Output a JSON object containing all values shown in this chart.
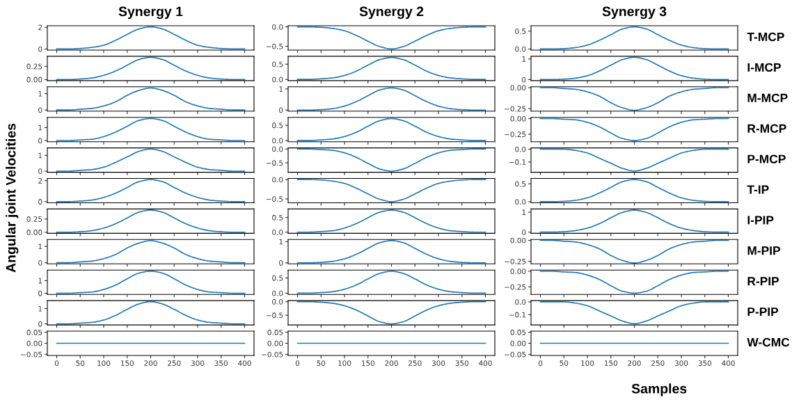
{
  "chart_data": [
    {
      "type": "line",
      "title": "Synergy 1",
      "x": [
        0,
        25,
        50,
        75,
        100,
        125,
        150,
        175,
        200,
        225,
        250,
        275,
        300,
        325,
        350,
        375,
        400
      ],
      "series": [
        {
          "color": "#1f77b4",
          "values": [
            0,
            0,
            0.05,
            0.15,
            0.35,
            0.8,
            1.35,
            1.85,
            2.05,
            1.85,
            1.35,
            0.8,
            0.35,
            0.15,
            0.05,
            0,
            0
          ]
        }
      ],
      "xlim": [
        -20,
        420
      ],
      "xticks": [
        0,
        50,
        100,
        150,
        200,
        250,
        300,
        350,
        400
      ],
      "ylim": [
        -0.1,
        2.15
      ],
      "yticks": [
        0,
        2
      ],
      "tick_labels": "y"
    },
    {
      "type": "line",
      "title": "Synergy 2",
      "x": [
        0,
        25,
        50,
        75,
        100,
        125,
        150,
        175,
        200,
        225,
        250,
        275,
        300,
        325,
        350,
        375,
        400
      ],
      "series": [
        {
          "color": "#1f77b4",
          "values": [
            0,
            0,
            -0.01,
            -0.04,
            -0.1,
            -0.22,
            -0.37,
            -0.51,
            -0.57,
            -0.51,
            -0.37,
            -0.22,
            -0.1,
            -0.04,
            -0.01,
            0,
            0
          ]
        }
      ],
      "xlim": [
        -20,
        420
      ],
      "xticks": [
        0,
        50,
        100,
        150,
        200,
        250,
        300,
        350,
        400
      ],
      "ylim": [
        -0.6,
        0.03
      ],
      "yticks": [
        {
          "value": -0.5,
          "label": "−0.5"
        },
        {
          "value": 0,
          "label": "0.0"
        }
      ],
      "tick_labels": "y"
    },
    {
      "type": "line",
      "title": "Synergy 3",
      "y2label": "T-MCP",
      "x": [
        0,
        25,
        50,
        75,
        100,
        125,
        150,
        175,
        200,
        225,
        250,
        275,
        300,
        325,
        350,
        375,
        400
      ],
      "series": [
        {
          "color": "#1f77b4",
          "values": [
            0,
            0,
            0.01,
            0.04,
            0.11,
            0.24,
            0.4,
            0.56,
            0.62,
            0.56,
            0.4,
            0.24,
            0.11,
            0.04,
            0.01,
            0,
            0
          ]
        }
      ],
      "xlim": [
        -20,
        420
      ],
      "xticks": [
        0,
        50,
        100,
        150,
        200,
        250,
        300,
        350,
        400
      ],
      "ylim": [
        -0.03,
        0.65
      ],
      "yticks": [
        {
          "value": 0,
          "label": "0.0"
        },
        {
          "value": 0.5,
          "label": "0.5"
        }
      ],
      "tick_labels": "y"
    },
    {
      "type": "line",
      "x": [
        0,
        25,
        50,
        75,
        100,
        125,
        150,
        175,
        200,
        225,
        250,
        275,
        300,
        325,
        350,
        375,
        400
      ],
      "series": [
        {
          "color": "#1f77b4",
          "values": [
            0,
            0,
            0.01,
            0.03,
            0.08,
            0.16,
            0.27,
            0.38,
            0.42,
            0.38,
            0.27,
            0.16,
            0.08,
            0.03,
            0.01,
            0,
            0
          ]
        }
      ],
      "xlim": [
        -20,
        420
      ],
      "xticks": [
        0,
        50,
        100,
        150,
        200,
        250,
        300,
        350,
        400
      ],
      "ylim": [
        -0.02,
        0.44
      ],
      "yticks": [
        {
          "value": 0,
          "label": "0.00"
        },
        {
          "value": 0.25,
          "label": "0.25"
        }
      ],
      "tick_labels": "y"
    },
    {
      "type": "line",
      "x": [
        0,
        25,
        50,
        75,
        100,
        125,
        150,
        175,
        200,
        225,
        250,
        275,
        300,
        325,
        350,
        375,
        400
      ],
      "series": [
        {
          "color": "#1f77b4",
          "values": [
            0,
            0,
            0.02,
            0.05,
            0.13,
            0.27,
            0.47,
            0.65,
            0.72,
            0.65,
            0.47,
            0.27,
            0.13,
            0.05,
            0.02,
            0,
            0
          ]
        }
      ],
      "xlim": [
        -20,
        420
      ],
      "xticks": [
        0,
        50,
        100,
        150,
        200,
        250,
        300,
        350,
        400
      ],
      "ylim": [
        -0.04,
        0.76
      ],
      "yticks": [
        {
          "value": 0,
          "label": "0.0"
        },
        {
          "value": 0.5,
          "label": "0.5"
        }
      ],
      "tick_labels": "y"
    },
    {
      "type": "line",
      "y2label": "I-MCP",
      "x": [
        0,
        25,
        50,
        75,
        100,
        125,
        150,
        175,
        200,
        225,
        250,
        275,
        300,
        325,
        350,
        375,
        400
      ],
      "series": [
        {
          "color": "#1f77b4",
          "values": [
            0,
            0,
            0.02,
            0.07,
            0.19,
            0.41,
            0.7,
            0.97,
            1.08,
            0.97,
            0.7,
            0.41,
            0.19,
            0.07,
            0.02,
            0,
            0
          ]
        }
      ],
      "xlim": [
        -20,
        420
      ],
      "xticks": [
        0,
        50,
        100,
        150,
        200,
        250,
        300,
        350,
        400
      ],
      "ylim": [
        -0.05,
        1.13
      ],
      "yticks": [
        0,
        1
      ],
      "tick_labels": "y"
    },
    {
      "type": "line",
      "x": [
        0,
        25,
        50,
        75,
        100,
        125,
        150,
        175,
        200,
        225,
        250,
        275,
        300,
        325,
        350,
        375,
        400
      ],
      "series": [
        {
          "color": "#1f77b4",
          "values": [
            0,
            0,
            0.05,
            0.1,
            0.25,
            0.5,
            0.9,
            1.2,
            1.35,
            1.2,
            0.9,
            0.5,
            0.25,
            0.1,
            0.05,
            0,
            0
          ]
        }
      ],
      "xlim": [
        -20,
        420
      ],
      "xticks": [
        0,
        50,
        100,
        150,
        200,
        250,
        300,
        350,
        400
      ],
      "ylim": [
        -0.07,
        1.42
      ],
      "yticks": [
        0,
        1
      ],
      "tick_labels": "y"
    },
    {
      "type": "line",
      "x": [
        0,
        25,
        50,
        75,
        100,
        125,
        150,
        175,
        200,
        225,
        250,
        275,
        300,
        325,
        350,
        375,
        400
      ],
      "series": [
        {
          "color": "#1f77b4",
          "values": [
            0,
            0,
            0.02,
            0.07,
            0.19,
            0.4,
            0.68,
            0.95,
            1.05,
            0.95,
            0.68,
            0.4,
            0.19,
            0.07,
            0.02,
            0,
            0
          ]
        }
      ],
      "xlim": [
        -20,
        420
      ],
      "xticks": [
        0,
        50,
        100,
        150,
        200,
        250,
        300,
        350,
        400
      ],
      "ylim": [
        -0.05,
        1.1
      ],
      "yticks": [
        0,
        1
      ],
      "tick_labels": "y"
    },
    {
      "type": "line",
      "y2label": "M-MCP",
      "x": [
        0,
        25,
        50,
        75,
        100,
        125,
        150,
        175,
        200,
        225,
        250,
        275,
        300,
        325,
        350,
        375,
        400
      ],
      "series": [
        {
          "color": "#1f77b4",
          "values": [
            0,
            0,
            -0.01,
            -0.02,
            -0.05,
            -0.1,
            -0.18,
            -0.24,
            -0.27,
            -0.24,
            -0.18,
            -0.1,
            -0.05,
            -0.02,
            -0.01,
            0,
            0
          ]
        }
      ],
      "xlim": [
        -20,
        420
      ],
      "xticks": [
        0,
        50,
        100,
        150,
        200,
        250,
        300,
        350,
        400
      ],
      "ylim": [
        -0.28,
        0.01
      ],
      "yticks": [
        {
          "value": -0.25,
          "label": "−0.25"
        },
        {
          "value": 0,
          "label": "0.00"
        }
      ],
      "tick_labels": "y"
    },
    {
      "type": "line",
      "x": [
        0,
        25,
        50,
        75,
        100,
        125,
        150,
        175,
        200,
        225,
        250,
        275,
        300,
        325,
        350,
        375,
        400
      ],
      "series": [
        {
          "color": "#1f77b4",
          "values": [
            0,
            0,
            0.05,
            0.1,
            0.3,
            0.65,
            1.1,
            1.55,
            1.7,
            1.55,
            1.1,
            0.65,
            0.3,
            0.1,
            0.05,
            0,
            0
          ]
        }
      ],
      "xlim": [
        -20,
        420
      ],
      "xticks": [
        0,
        50,
        100,
        150,
        200,
        250,
        300,
        350,
        400
      ],
      "ylim": [
        -0.09,
        1.79
      ],
      "yticks": [
        0,
        1
      ],
      "tick_labels": "y"
    },
    {
      "type": "line",
      "x": [
        0,
        25,
        50,
        75,
        100,
        125,
        150,
        175,
        200,
        225,
        250,
        275,
        300,
        325,
        350,
        375,
        400
      ],
      "series": [
        {
          "color": "#1f77b4",
          "values": [
            0,
            0,
            0.02,
            0.05,
            0.13,
            0.27,
            0.47,
            0.65,
            0.72,
            0.65,
            0.47,
            0.27,
            0.13,
            0.05,
            0.02,
            0,
            0
          ]
        }
      ],
      "xlim": [
        -20,
        420
      ],
      "xticks": [
        0,
        50,
        100,
        150,
        200,
        250,
        300,
        350,
        400
      ],
      "ylim": [
        -0.04,
        0.76
      ],
      "yticks": [
        {
          "value": 0,
          "label": "0.0"
        },
        {
          "value": 0.5,
          "label": "0.5"
        }
      ],
      "tick_labels": "y"
    },
    {
      "type": "line",
      "y2label": "R-MCP",
      "x": [
        0,
        25,
        50,
        75,
        100,
        125,
        150,
        175,
        200,
        225,
        250,
        275,
        300,
        325,
        350,
        375,
        400
      ],
      "series": [
        {
          "color": "#1f77b4",
          "values": [
            0,
            0,
            -0.01,
            -0.02,
            -0.06,
            -0.13,
            -0.23,
            -0.32,
            -0.35,
            -0.32,
            -0.23,
            -0.13,
            -0.06,
            -0.02,
            -0.01,
            0,
            0
          ]
        }
      ],
      "xlim": [
        -20,
        420
      ],
      "xticks": [
        0,
        50,
        100,
        150,
        200,
        250,
        300,
        350,
        400
      ],
      "ylim": [
        -0.37,
        0.02
      ],
      "yticks": [
        {
          "value": -0.25,
          "label": "−0.25"
        },
        {
          "value": 0,
          "label": "0.00"
        }
      ],
      "tick_labels": "y"
    },
    {
      "type": "line",
      "x": [
        0,
        25,
        50,
        75,
        100,
        125,
        150,
        175,
        200,
        225,
        250,
        275,
        300,
        325,
        350,
        375,
        400
      ],
      "series": [
        {
          "color": "#1f77b4",
          "values": [
            0,
            0,
            0.05,
            0.1,
            0.25,
            0.55,
            0.9,
            1.25,
            1.4,
            1.25,
            0.9,
            0.55,
            0.25,
            0.1,
            0.05,
            0,
            0
          ]
        }
      ],
      "xlim": [
        -20,
        420
      ],
      "xticks": [
        0,
        50,
        100,
        150,
        200,
        250,
        300,
        350,
        400
      ],
      "ylim": [
        -0.07,
        1.47
      ],
      "yticks": [
        0,
        1
      ],
      "tick_labels": "y"
    },
    {
      "type": "line",
      "x": [
        0,
        25,
        50,
        75,
        100,
        125,
        150,
        175,
        200,
        225,
        250,
        275,
        300,
        325,
        350,
        375,
        400
      ],
      "series": [
        {
          "color": "#1f77b4",
          "values": [
            0,
            0,
            -0.02,
            -0.05,
            -0.14,
            -0.3,
            -0.52,
            -0.72,
            -0.8,
            -0.72,
            -0.52,
            -0.3,
            -0.14,
            -0.05,
            -0.02,
            0,
            0
          ]
        }
      ],
      "xlim": [
        -20,
        420
      ],
      "xticks": [
        0,
        50,
        100,
        150,
        200,
        250,
        300,
        350,
        400
      ],
      "ylim": [
        -0.84,
        0.04
      ],
      "yticks": [
        {
          "value": -0.5,
          "label": "−0.5"
        },
        {
          "value": 0,
          "label": "0.0"
        }
      ],
      "tick_labels": "y"
    },
    {
      "type": "line",
      "y2label": "P-MCP",
      "x": [
        0,
        25,
        50,
        75,
        100,
        125,
        150,
        175,
        200,
        225,
        250,
        275,
        300,
        325,
        350,
        375,
        400
      ],
      "series": [
        {
          "color": "#1f77b4",
          "values": [
            0,
            0,
            0,
            -0.01,
            -0.03,
            -0.07,
            -0.11,
            -0.15,
            -0.17,
            -0.15,
            -0.11,
            -0.07,
            -0.03,
            -0.01,
            0,
            0,
            0
          ]
        }
      ],
      "xlim": [
        -20,
        420
      ],
      "xticks": [
        0,
        50,
        100,
        150,
        200,
        250,
        300,
        350,
        400
      ],
      "ylim": [
        -0.18,
        0.01
      ],
      "yticks": [
        {
          "value": -0.1,
          "label": "−0.1"
        },
        {
          "value": 0,
          "label": "0.0"
        }
      ],
      "tick_labels": "y"
    },
    {
      "type": "line",
      "ylabel": "Angular joint Velocities",
      "x": [
        0,
        25,
        50,
        75,
        100,
        125,
        150,
        175,
        200,
        225,
        250,
        275,
        300,
        325,
        350,
        375,
        400
      ],
      "series": [
        {
          "color": "#1f77b4",
          "values": [
            0,
            0,
            0.05,
            0.15,
            0.4,
            0.8,
            1.35,
            1.9,
            2.1,
            1.9,
            1.35,
            0.8,
            0.4,
            0.15,
            0.05,
            0,
            0
          ]
        }
      ],
      "xlim": [
        -20,
        420
      ],
      "xticks": [
        0,
        50,
        100,
        150,
        200,
        250,
        300,
        350,
        400
      ],
      "ylim": [
        -0.11,
        2.21
      ],
      "yticks": [
        0,
        2
      ],
      "tick_labels": "y"
    },
    {
      "type": "line",
      "x": [
        0,
        25,
        50,
        75,
        100,
        125,
        150,
        175,
        200,
        225,
        250,
        275,
        300,
        325,
        350,
        375,
        400
      ],
      "series": [
        {
          "color": "#1f77b4",
          "values": [
            0,
            0,
            -0.01,
            -0.04,
            -0.1,
            -0.22,
            -0.37,
            -0.51,
            -0.57,
            -0.51,
            -0.37,
            -0.22,
            -0.1,
            -0.04,
            -0.01,
            0,
            0
          ]
        }
      ],
      "xlim": [
        -20,
        420
      ],
      "xticks": [
        0,
        50,
        100,
        150,
        200,
        250,
        300,
        350,
        400
      ],
      "ylim": [
        -0.6,
        0.03
      ],
      "yticks": [
        {
          "value": -0.5,
          "label": "−0.5"
        },
        {
          "value": 0,
          "label": "0.0"
        }
      ],
      "tick_labels": "y"
    },
    {
      "type": "line",
      "y2label": "T-IP",
      "x": [
        0,
        25,
        50,
        75,
        100,
        125,
        150,
        175,
        200,
        225,
        250,
        275,
        300,
        325,
        350,
        375,
        400
      ],
      "series": [
        {
          "color": "#1f77b4",
          "values": [
            0,
            0,
            0.01,
            0.04,
            0.11,
            0.24,
            0.4,
            0.56,
            0.62,
            0.56,
            0.4,
            0.24,
            0.11,
            0.04,
            0.01,
            0,
            0
          ]
        }
      ],
      "xlim": [
        -20,
        420
      ],
      "xticks": [
        0,
        50,
        100,
        150,
        200,
        250,
        300,
        350,
        400
      ],
      "ylim": [
        -0.03,
        0.65
      ],
      "yticks": [
        {
          "value": 0,
          "label": "0.0"
        },
        {
          "value": 0.5,
          "label": "0.5"
        }
      ],
      "tick_labels": "y"
    },
    {
      "type": "line",
      "x": [
        0,
        25,
        50,
        75,
        100,
        125,
        150,
        175,
        200,
        225,
        250,
        275,
        300,
        325,
        350,
        375,
        400
      ],
      "series": [
        {
          "color": "#1f77b4",
          "values": [
            0,
            0,
            0.01,
            0.03,
            0.08,
            0.16,
            0.27,
            0.38,
            0.42,
            0.38,
            0.27,
            0.16,
            0.08,
            0.03,
            0.01,
            0,
            0
          ]
        }
      ],
      "xlim": [
        -20,
        420
      ],
      "xticks": [
        0,
        50,
        100,
        150,
        200,
        250,
        300,
        350,
        400
      ],
      "ylim": [
        -0.02,
        0.44
      ],
      "yticks": [
        {
          "value": 0,
          "label": "0.00"
        },
        {
          "value": 0.25,
          "label": "0.25"
        }
      ],
      "tick_labels": "y"
    },
    {
      "type": "line",
      "x": [
        0,
        25,
        50,
        75,
        100,
        125,
        150,
        175,
        200,
        225,
        250,
        275,
        300,
        325,
        350,
        375,
        400
      ],
      "series": [
        {
          "color": "#1f77b4",
          "values": [
            0,
            0,
            0.02,
            0.05,
            0.14,
            0.29,
            0.49,
            0.68,
            0.75,
            0.68,
            0.49,
            0.29,
            0.14,
            0.05,
            0.02,
            0,
            0
          ]
        }
      ],
      "xlim": [
        -20,
        420
      ],
      "xticks": [
        0,
        50,
        100,
        150,
        200,
        250,
        300,
        350,
        400
      ],
      "ylim": [
        -0.04,
        0.79
      ],
      "yticks": [
        {
          "value": 0,
          "label": "0.0"
        },
        {
          "value": 0.5,
          "label": "0.5"
        }
      ],
      "tick_labels": "y"
    },
    {
      "type": "line",
      "y2label": "I-PIP",
      "x": [
        0,
        25,
        50,
        75,
        100,
        125,
        150,
        175,
        200,
        225,
        250,
        275,
        300,
        325,
        350,
        375,
        400
      ],
      "series": [
        {
          "color": "#1f77b4",
          "values": [
            0,
            0,
            0.02,
            0.08,
            0.2,
            0.42,
            0.72,
            0.99,
            1.1,
            0.99,
            0.72,
            0.42,
            0.2,
            0.08,
            0.02,
            0,
            0
          ]
        }
      ],
      "xlim": [
        -20,
        420
      ],
      "xticks": [
        0,
        50,
        100,
        150,
        200,
        250,
        300,
        350,
        400
      ],
      "ylim": [
        -0.06,
        1.16
      ],
      "yticks": [
        0,
        1
      ],
      "tick_labels": "y"
    },
    {
      "type": "line",
      "x": [
        0,
        25,
        50,
        75,
        100,
        125,
        150,
        175,
        200,
        225,
        250,
        275,
        300,
        325,
        350,
        375,
        400
      ],
      "series": [
        {
          "color": "#1f77b4",
          "values": [
            0,
            0,
            0.05,
            0.1,
            0.25,
            0.5,
            0.9,
            1.2,
            1.35,
            1.2,
            0.9,
            0.5,
            0.25,
            0.1,
            0.05,
            0,
            0
          ]
        }
      ],
      "xlim": [
        -20,
        420
      ],
      "xticks": [
        0,
        50,
        100,
        150,
        200,
        250,
        300,
        350,
        400
      ],
      "ylim": [
        -0.07,
        1.42
      ],
      "yticks": [
        0,
        1
      ],
      "tick_labels": "y"
    },
    {
      "type": "line",
      "x": [
        0,
        25,
        50,
        75,
        100,
        125,
        150,
        175,
        200,
        225,
        250,
        275,
        300,
        325,
        350,
        375,
        400
      ],
      "series": [
        {
          "color": "#1f77b4",
          "values": [
            0,
            0,
            0.02,
            0.07,
            0.19,
            0.4,
            0.68,
            0.95,
            1.05,
            0.95,
            0.68,
            0.4,
            0.19,
            0.07,
            0.02,
            0,
            0
          ]
        }
      ],
      "xlim": [
        -20,
        420
      ],
      "xticks": [
        0,
        50,
        100,
        150,
        200,
        250,
        300,
        350,
        400
      ],
      "ylim": [
        -0.05,
        1.1
      ],
      "yticks": [
        0,
        1
      ],
      "tick_labels": "y"
    },
    {
      "type": "line",
      "y2label": "M-PIP",
      "x": [
        0,
        25,
        50,
        75,
        100,
        125,
        150,
        175,
        200,
        225,
        250,
        275,
        300,
        325,
        350,
        375,
        400
      ],
      "series": [
        {
          "color": "#1f77b4",
          "values": [
            0,
            0,
            -0.01,
            -0.02,
            -0.05,
            -0.1,
            -0.18,
            -0.24,
            -0.27,
            -0.24,
            -0.18,
            -0.1,
            -0.05,
            -0.02,
            -0.01,
            0,
            0
          ]
        }
      ],
      "xlim": [
        -20,
        420
      ],
      "xticks": [
        0,
        50,
        100,
        150,
        200,
        250,
        300,
        350,
        400
      ],
      "ylim": [
        -0.28,
        0.01
      ],
      "yticks": [
        {
          "value": -0.25,
          "label": "−0.25"
        },
        {
          "value": 0,
          "label": "0.00"
        }
      ],
      "tick_labels": "y"
    },
    {
      "type": "line",
      "x": [
        0,
        25,
        50,
        75,
        100,
        125,
        150,
        175,
        200,
        225,
        250,
        275,
        300,
        325,
        350,
        375,
        400
      ],
      "series": [
        {
          "color": "#1f77b4",
          "values": [
            0,
            0,
            0.05,
            0.1,
            0.3,
            0.65,
            1.15,
            1.6,
            1.75,
            1.6,
            1.15,
            0.65,
            0.3,
            0.1,
            0.05,
            0,
            0
          ]
        }
      ],
      "xlim": [
        -20,
        420
      ],
      "xticks": [
        0,
        50,
        100,
        150,
        200,
        250,
        300,
        350,
        400
      ],
      "ylim": [
        -0.09,
        1.84
      ],
      "yticks": [
        0,
        1
      ],
      "tick_labels": "y"
    },
    {
      "type": "line",
      "x": [
        0,
        25,
        50,
        75,
        100,
        125,
        150,
        175,
        200,
        225,
        250,
        275,
        300,
        325,
        350,
        375,
        400
      ],
      "series": [
        {
          "color": "#1f77b4",
          "values": [
            0,
            0,
            0.02,
            0.05,
            0.13,
            0.27,
            0.47,
            0.65,
            0.72,
            0.65,
            0.47,
            0.27,
            0.13,
            0.05,
            0.02,
            0,
            0
          ]
        }
      ],
      "xlim": [
        -20,
        420
      ],
      "xticks": [
        0,
        50,
        100,
        150,
        200,
        250,
        300,
        350,
        400
      ],
      "ylim": [
        -0.04,
        0.76
      ],
      "yticks": [
        {
          "value": 0,
          "label": "0.0"
        },
        {
          "value": 0.5,
          "label": "0.5"
        }
      ],
      "tick_labels": "y"
    },
    {
      "type": "line",
      "y2label": "R-PIP",
      "x": [
        0,
        25,
        50,
        75,
        100,
        125,
        150,
        175,
        200,
        225,
        250,
        275,
        300,
        325,
        350,
        375,
        400
      ],
      "series": [
        {
          "color": "#1f77b4",
          "values": [
            0,
            0,
            -0.01,
            -0.02,
            -0.06,
            -0.13,
            -0.23,
            -0.32,
            -0.35,
            -0.32,
            -0.23,
            -0.13,
            -0.06,
            -0.02,
            -0.01,
            0,
            0
          ]
        }
      ],
      "xlim": [
        -20,
        420
      ],
      "xticks": [
        0,
        50,
        100,
        150,
        200,
        250,
        300,
        350,
        400
      ],
      "ylim": [
        -0.37,
        0.02
      ],
      "yticks": [
        {
          "value": -0.25,
          "label": "−0.25"
        },
        {
          "value": 0,
          "label": "0.00"
        }
      ],
      "tick_labels": "y"
    },
    {
      "type": "line",
      "x": [
        0,
        25,
        50,
        75,
        100,
        125,
        150,
        175,
        200,
        225,
        250,
        275,
        300,
        325,
        350,
        375,
        400
      ],
      "series": [
        {
          "color": "#1f77b4",
          "values": [
            0,
            0,
            0.05,
            0.1,
            0.25,
            0.55,
            0.95,
            1.3,
            1.45,
            1.3,
            0.95,
            0.55,
            0.25,
            0.1,
            0.05,
            0,
            0
          ]
        }
      ],
      "xlim": [
        -20,
        420
      ],
      "xticks": [
        0,
        50,
        100,
        150,
        200,
        250,
        300,
        350,
        400
      ],
      "ylim": [
        -0.07,
        1.52
      ],
      "yticks": [
        0,
        1
      ],
      "tick_labels": "y"
    },
    {
      "type": "line",
      "x": [
        0,
        25,
        50,
        75,
        100,
        125,
        150,
        175,
        200,
        225,
        250,
        275,
        300,
        325,
        350,
        375,
        400
      ],
      "series": [
        {
          "color": "#1f77b4",
          "values": [
            0,
            0,
            -0.02,
            -0.06,
            -0.15,
            -0.31,
            -0.53,
            -0.74,
            -0.82,
            -0.74,
            -0.53,
            -0.31,
            -0.15,
            -0.06,
            -0.02,
            0,
            0
          ]
        }
      ],
      "xlim": [
        -20,
        420
      ],
      "xticks": [
        0,
        50,
        100,
        150,
        200,
        250,
        300,
        350,
        400
      ],
      "ylim": [
        -0.86,
        0.04
      ],
      "yticks": [
        {
          "value": -0.5,
          "label": "−0.5"
        },
        {
          "value": 0,
          "label": "0.0"
        }
      ],
      "tick_labels": "y"
    },
    {
      "type": "line",
      "y2label": "P-PIP",
      "x": [
        0,
        25,
        50,
        75,
        100,
        125,
        150,
        175,
        200,
        225,
        250,
        275,
        300,
        325,
        350,
        375,
        400
      ],
      "series": [
        {
          "color": "#1f77b4",
          "values": [
            0,
            0,
            0,
            -0.01,
            -0.03,
            -0.07,
            -0.11,
            -0.15,
            -0.17,
            -0.15,
            -0.11,
            -0.07,
            -0.03,
            -0.01,
            0,
            0,
            0
          ]
        }
      ],
      "xlim": [
        -20,
        420
      ],
      "xticks": [
        0,
        50,
        100,
        150,
        200,
        250,
        300,
        350,
        400
      ],
      "ylim": [
        -0.18,
        0.01
      ],
      "yticks": [
        {
          "value": -0.1,
          "label": "−0.1"
        },
        {
          "value": 0,
          "label": "0.0"
        }
      ],
      "tick_labels": "y"
    },
    {
      "type": "line",
      "x": [
        0,
        400
      ],
      "series": [
        {
          "color": "#1f77b4",
          "values": [
            0,
            0
          ]
        }
      ],
      "xlim": [
        -20,
        420
      ],
      "xticks": [
        0,
        50,
        100,
        150,
        200,
        250,
        300,
        350,
        400
      ],
      "ylim": [
        -0.055,
        0.055
      ],
      "yticks": [
        {
          "value": -0.05,
          "label": "−0.05"
        },
        {
          "value": 0,
          "label": "0.00"
        },
        {
          "value": 0.05,
          "label": "0.05"
        }
      ]
    },
    {
      "type": "line",
      "x": [
        0,
        400
      ],
      "series": [
        {
          "color": "#1f77b4",
          "values": [
            0,
            0
          ]
        }
      ],
      "xlim": [
        -20,
        420
      ],
      "xticks": [
        0,
        50,
        100,
        150,
        200,
        250,
        300,
        350,
        400
      ],
      "ylim": [
        -0.055,
        0.055
      ],
      "yticks": [
        {
          "value": -0.05,
          "label": "−0.05"
        },
        {
          "value": 0,
          "label": "0.00"
        },
        {
          "value": 0.05,
          "label": "0.05"
        }
      ]
    },
    {
      "type": "line",
      "xlabel": "Samples",
      "y2label": "W-CMC",
      "x": [
        0,
        400
      ],
      "series": [
        {
          "color": "#1f77b4",
          "values": [
            0,
            0
          ]
        }
      ],
      "xlim": [
        -20,
        420
      ],
      "xticks": [
        0,
        50,
        100,
        150,
        200,
        250,
        300,
        350,
        400
      ],
      "ylim": [
        -0.055,
        0.055
      ],
      "yticks": [
        {
          "value": -0.05,
          "label": "−0.05"
        },
        {
          "value": 0,
          "label": "0.00"
        },
        {
          "value": 0.05,
          "label": "0.05"
        }
      ]
    }
  ]
}
